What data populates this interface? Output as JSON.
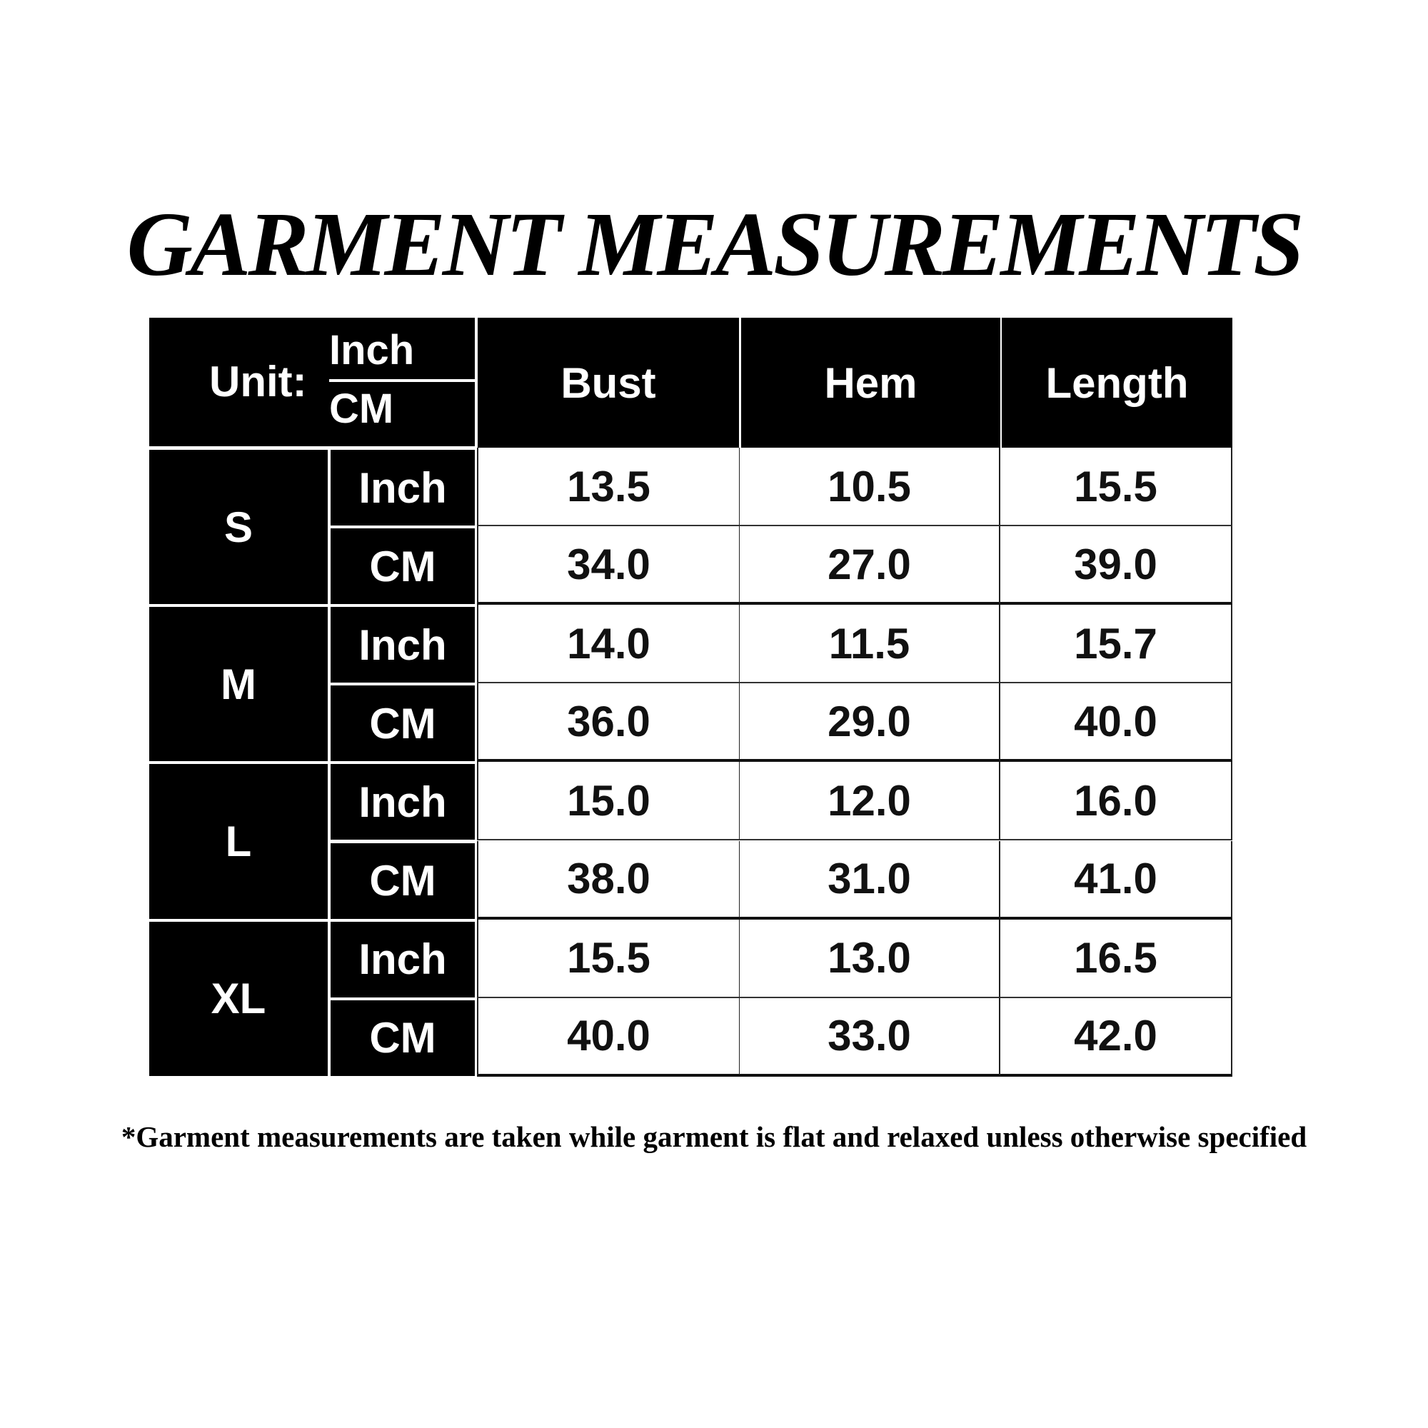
{
  "title": "GARMENT MEASUREMENTS",
  "table": {
    "unit_label": "Unit:",
    "unit_top": "Inch",
    "unit_bottom": "CM",
    "columns": [
      "Bust",
      "Hem",
      "Length"
    ],
    "sizes": [
      {
        "size": "S",
        "rows": [
          {
            "unit": "Inch",
            "values": [
              "13.5",
              "10.5",
              "15.5"
            ]
          },
          {
            "unit": "CM",
            "values": [
              "34.0",
              "27.0",
              "39.0"
            ]
          }
        ]
      },
      {
        "size": "M",
        "rows": [
          {
            "unit": "Inch",
            "values": [
              "14.0",
              "11.5",
              "15.7"
            ]
          },
          {
            "unit": "CM",
            "values": [
              "36.0",
              "29.0",
              "40.0"
            ]
          }
        ]
      },
      {
        "size": "L",
        "rows": [
          {
            "unit": "Inch",
            "values": [
              "15.0",
              "12.0",
              "16.0"
            ]
          },
          {
            "unit": "CM",
            "values": [
              "38.0",
              "31.0",
              "41.0"
            ]
          }
        ]
      },
      {
        "size": "XL",
        "rows": [
          {
            "unit": "Inch",
            "values": [
              "15.5",
              "13.0",
              "16.5"
            ]
          },
          {
            "unit": "CM",
            "values": [
              "40.0",
              "33.0",
              "42.0"
            ]
          }
        ]
      }
    ]
  },
  "footnote": "*Garment measurements are taken while garment is flat and relaxed unless otherwise specified"
}
